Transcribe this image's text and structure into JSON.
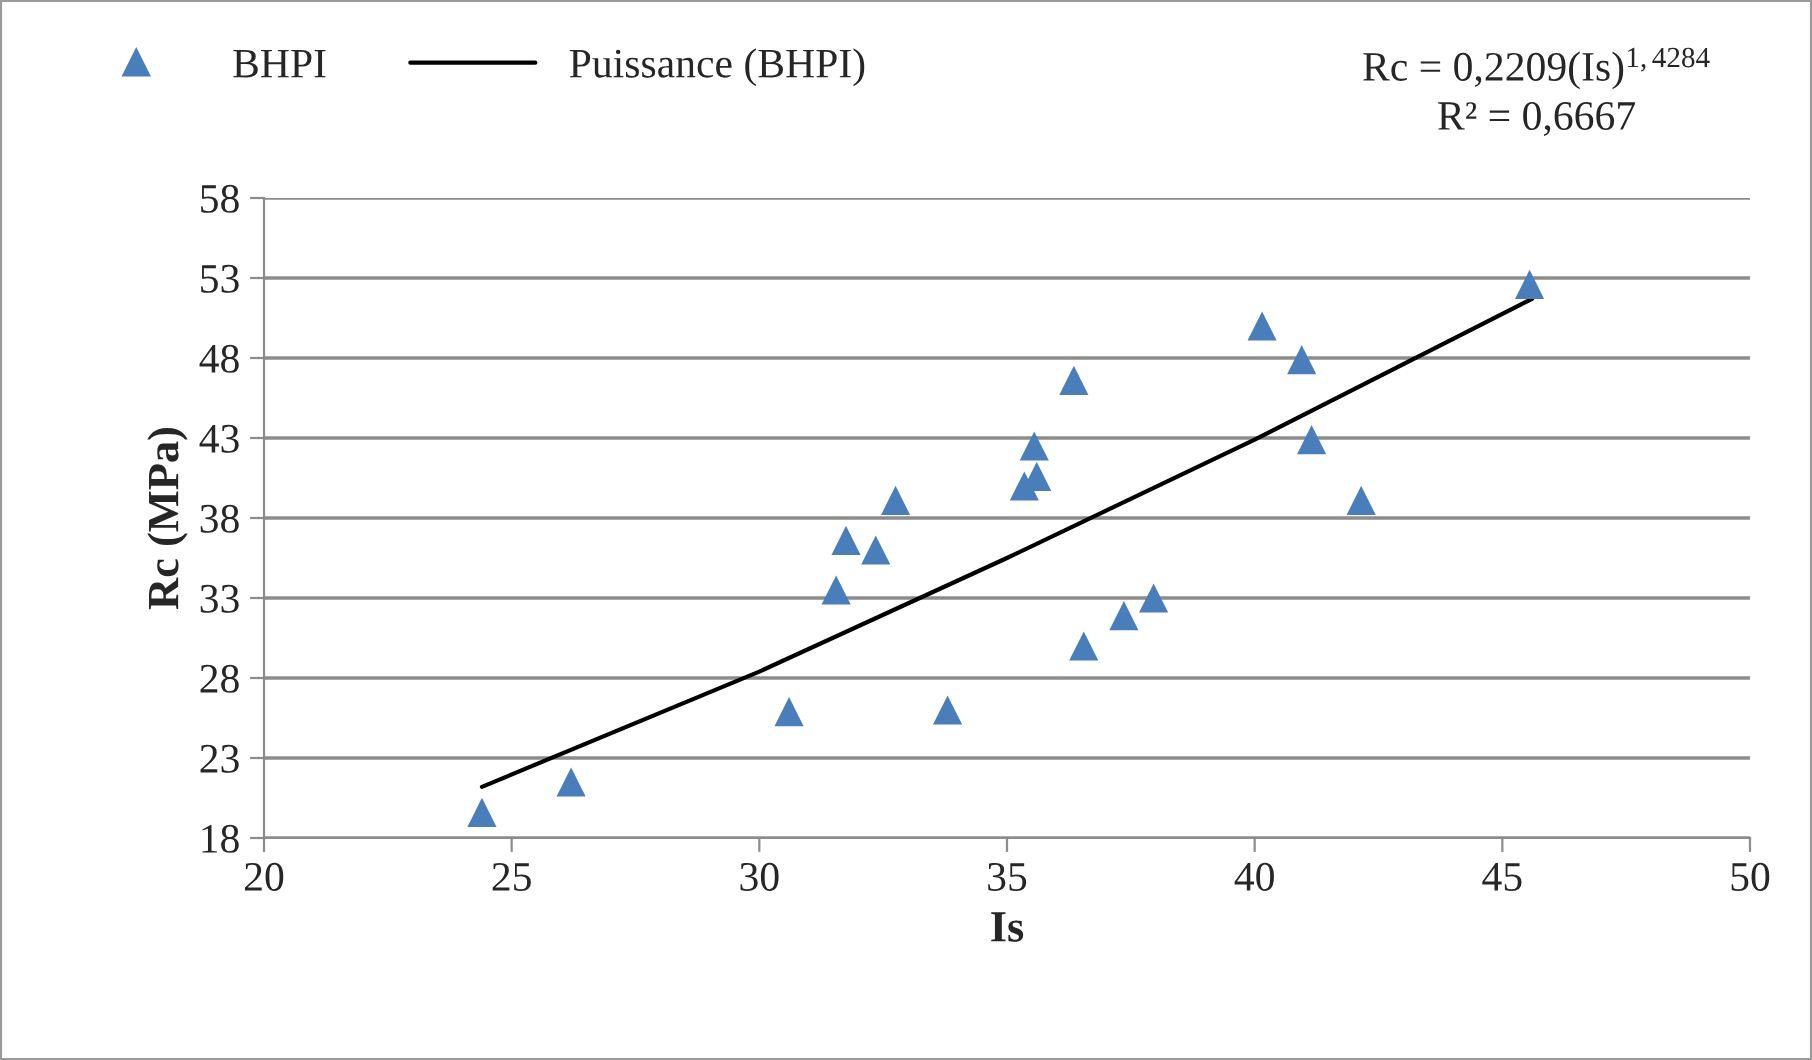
{
  "chart_data": {
    "type": "scatter",
    "xlabel": "Is",
    "ylabel": "Rc (MPa)",
    "annotations": [
      "Rc = 0,2209(Is)$^{1,4284}$",
      "R² = 0,6667"
    ],
    "series": [
      {
        "name": "BHPI",
        "color": "#4a7ebb",
        "marker": "triangle",
        "x": [
          24.4,
          26.2,
          30.6,
          33.8,
          31.55,
          31.75,
          32.35,
          32.75,
          35.55,
          35.35,
          35.6,
          36.35,
          36.55,
          37.36,
          37.96,
          40.15,
          40.95,
          41.15,
          42.15,
          45.55
        ],
        "values": [
          19.6,
          21.5,
          25.9,
          26.0,
          33.5,
          36.6,
          36.0,
          39.1,
          42.5,
          40.0,
          40.6,
          46.6,
          30.0,
          31.9,
          33.0,
          50.0,
          47.9,
          42.9,
          39.1,
          52.6
        ]
      },
      {
        "name": "Puissance (BHPI)",
        "type": "line",
        "color": "#000000",
        "marker": "none",
        "line_style": "solid",
        "x": [
          24.4,
          30,
          35,
          40,
          45.6
        ],
        "values": [
          21.2,
          28.4,
          35.5,
          42.9,
          51.7
        ]
      }
    ],
    "xlim": [
      20,
      50
    ],
    "xticks": [
      20,
      25,
      30,
      35,
      40,
      45,
      50
    ],
    "ylim": [
      18,
      58
    ],
    "yticks": [
      18,
      23,
      28,
      33,
      38,
      43,
      48,
      53,
      58
    ],
    "grid": "y",
    "legend": "top left"
  }
}
